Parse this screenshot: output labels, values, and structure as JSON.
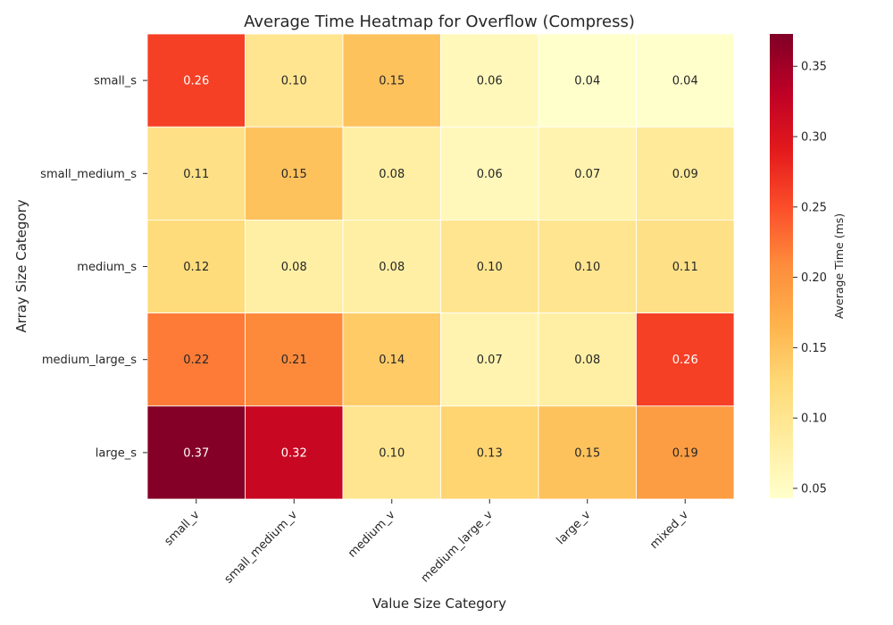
{
  "chart_data": {
    "type": "heatmap",
    "title": "Average Time Heatmap for Overflow (Compress)",
    "xlabel": "Value Size Category",
    "ylabel": "Array Size Category",
    "x_categories": [
      "small_v",
      "small_medium_v",
      "medium_v",
      "medium_large_v",
      "large_v",
      "mixed_v"
    ],
    "y_categories": [
      "small_s",
      "small_medium_s",
      "medium_s",
      "medium_large_s",
      "large_s"
    ],
    "values": [
      [
        0.26,
        0.1,
        0.15,
        0.06,
        0.04,
        0.04
      ],
      [
        0.11,
        0.15,
        0.08,
        0.06,
        0.07,
        0.09
      ],
      [
        0.12,
        0.08,
        0.08,
        0.1,
        0.1,
        0.11
      ],
      [
        0.22,
        0.21,
        0.14,
        0.07,
        0.08,
        0.26
      ],
      [
        0.37,
        0.32,
        0.1,
        0.13,
        0.15,
        0.19
      ]
    ],
    "colorbar": {
      "label": "Average Time (ms)",
      "min": 0.043,
      "max": 0.373,
      "ticks": [
        0.05,
        0.1,
        0.15,
        0.2,
        0.25,
        0.3,
        0.35
      ],
      "tick_labels": [
        "0.05",
        "0.10",
        "0.15",
        "0.20",
        "0.25",
        "0.30",
        "0.35"
      ],
      "colormap": "YlOrRd"
    },
    "annotation_format": "0.00",
    "grid": false
  }
}
